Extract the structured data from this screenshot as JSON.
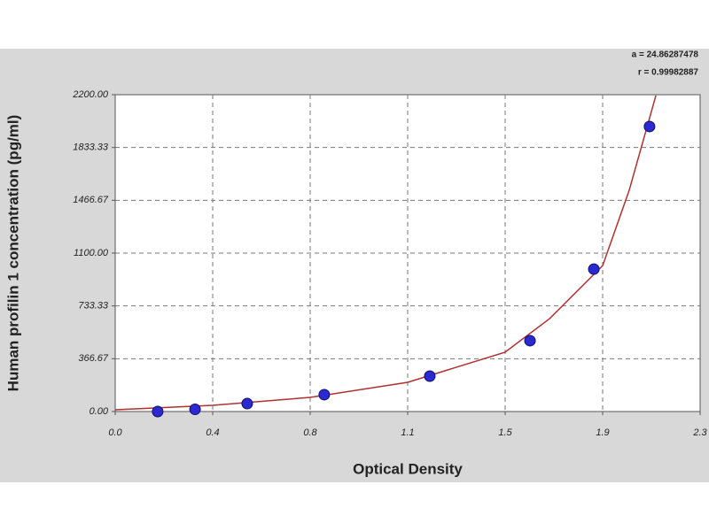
{
  "chart_data": {
    "type": "scatter",
    "x_label": "Optical Density",
    "y_label": "Human profilin 1 concentration (pg/ml)",
    "annotations": [
      "a = 24.86287478",
      "r = 0.99982887"
    ],
    "xlim": [
      0,
      2.3
    ],
    "ylim": [
      0,
      2200
    ],
    "xticks": [
      {
        "value": 0,
        "label": "0.0"
      },
      {
        "value": 0.3833,
        "label": "0.4"
      },
      {
        "value": 0.7667,
        "label": "0.8"
      },
      {
        "value": 1.15,
        "label": "1.1"
      },
      {
        "value": 1.5333,
        "label": "1.5"
      },
      {
        "value": 1.9167,
        "label": "1.9"
      },
      {
        "value": 2.3,
        "label": "2.3"
      }
    ],
    "yticks": [
      {
        "value": 0,
        "label": "0.00"
      },
      {
        "value": 366.67,
        "label": "366.67"
      },
      {
        "value": 733.33,
        "label": "733.33"
      },
      {
        "value": 1100,
        "label": "1100.00"
      },
      {
        "value": 1466.67,
        "label": "1466.67"
      },
      {
        "value": 1833.33,
        "label": "1833.33"
      },
      {
        "value": 2200,
        "label": "2200.00"
      }
    ],
    "grid": true,
    "series": [
      {
        "type": "scatter",
        "color": "#2a2ad0",
        "x": [
          0.167,
          0.314,
          0.519,
          0.822,
          1.237,
          1.631,
          1.882,
          2.101
        ],
        "values": [
          0,
          15,
          55,
          117,
          246,
          492,
          989,
          1979
        ]
      },
      {
        "type": "line",
        "color": "#b03030",
        "x": [
          0,
          0.383,
          0.767,
          1.15,
          1.533,
          1.708,
          1.917,
          2.021,
          2.126
        ],
        "values": [
          12,
          43,
          98,
          203,
          412,
          645,
          1014,
          1536,
          2194
        ]
      }
    ]
  }
}
